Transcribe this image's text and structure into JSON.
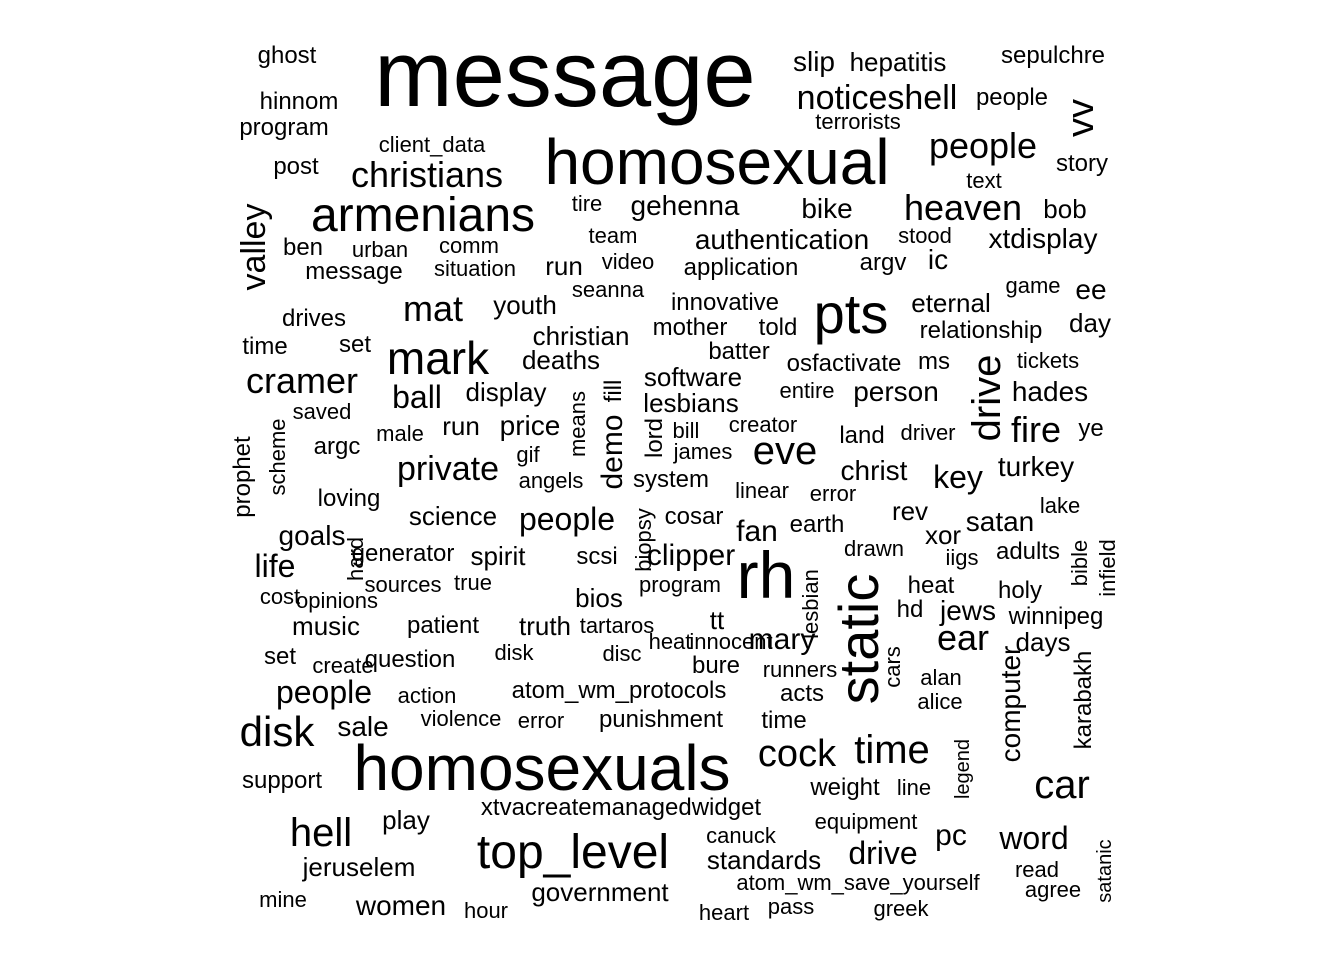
{
  "word_cloud": {
    "words": [
      "message",
      "homosexual",
      "homosexuals",
      "armenians",
      "top_level",
      "rh",
      "pts",
      "static",
      "mark",
      "noticeshell",
      "people",
      "christians",
      "heaven",
      "cramer",
      "disk",
      "hell",
      "cock",
      "time",
      "car",
      "eve",
      "mat",
      "valley",
      "drive",
      "vv",
      "authentication",
      "gehenna",
      "bike",
      "xtdisplay",
      "ic",
      "slip",
      "hepatitis",
      "ghost",
      "sepulchre",
      "hinnom",
      "program",
      "client_data",
      "post",
      "people",
      "terrorists",
      "story",
      "text",
      "tire",
      "bob",
      "ben",
      "urban",
      "comm",
      "team",
      "stood",
      "message",
      "situation",
      "run",
      "video",
      "application",
      "argv",
      "seanna",
      "game",
      "ee",
      "drives",
      "youth",
      "innovative",
      "eternal",
      "day",
      "time",
      "set",
      "christian",
      "mother",
      "told",
      "relationship",
      "deaths",
      "batter",
      "osfactivate",
      "ms",
      "tickets",
      "ball",
      "display",
      "software",
      "entire",
      "person",
      "hades",
      "saved",
      "run",
      "price",
      "lesbians",
      "fill",
      "means",
      "creator",
      "land",
      "driver",
      "fire",
      "ye",
      "argc",
      "male",
      "gif",
      "bill",
      "james",
      "lord",
      "demo",
      "scheme",
      "prophet",
      "private",
      "angels",
      "system",
      "linear",
      "error",
      "christ",
      "key",
      "turkey",
      "loving",
      "science",
      "people",
      "cosar",
      "biopsy",
      "fan",
      "earth",
      "rev",
      "xor",
      "satan",
      "lake",
      "goals",
      "hard",
      "generator",
      "spirit",
      "scsi",
      "clipper",
      "drawn",
      "iigs",
      "adults",
      "bible",
      "infield",
      "life",
      "sources",
      "true",
      "program",
      "lesbian",
      "heat",
      "holy",
      "cost",
      "opinions",
      "bios",
      "hd",
      "jews",
      "winnipeg",
      "music",
      "patient",
      "truth",
      "tartaros",
      "tt",
      "mary",
      "ear",
      "days",
      "set",
      "create",
      "question",
      "disk",
      "disc",
      "heat",
      "innocent",
      "bure",
      "runners",
      "cars",
      "karabakh",
      "people",
      "action",
      "atom_wm_protocols",
      "acts",
      "alan",
      "computer",
      "alice",
      "sale",
      "violence",
      "error",
      "punishment",
      "time",
      "legend",
      "support",
      "weight",
      "line",
      "play",
      "xtvacreatemanagedwidget",
      "equipment",
      "word",
      "pc",
      "canuck",
      "drive",
      "standards",
      "satanic",
      "jeruselem",
      "read",
      "atom_wm_save_yourself",
      "agree",
      "mine",
      "women",
      "hour",
      "government",
      "heart",
      "pass",
      "greek"
    ]
  }
}
